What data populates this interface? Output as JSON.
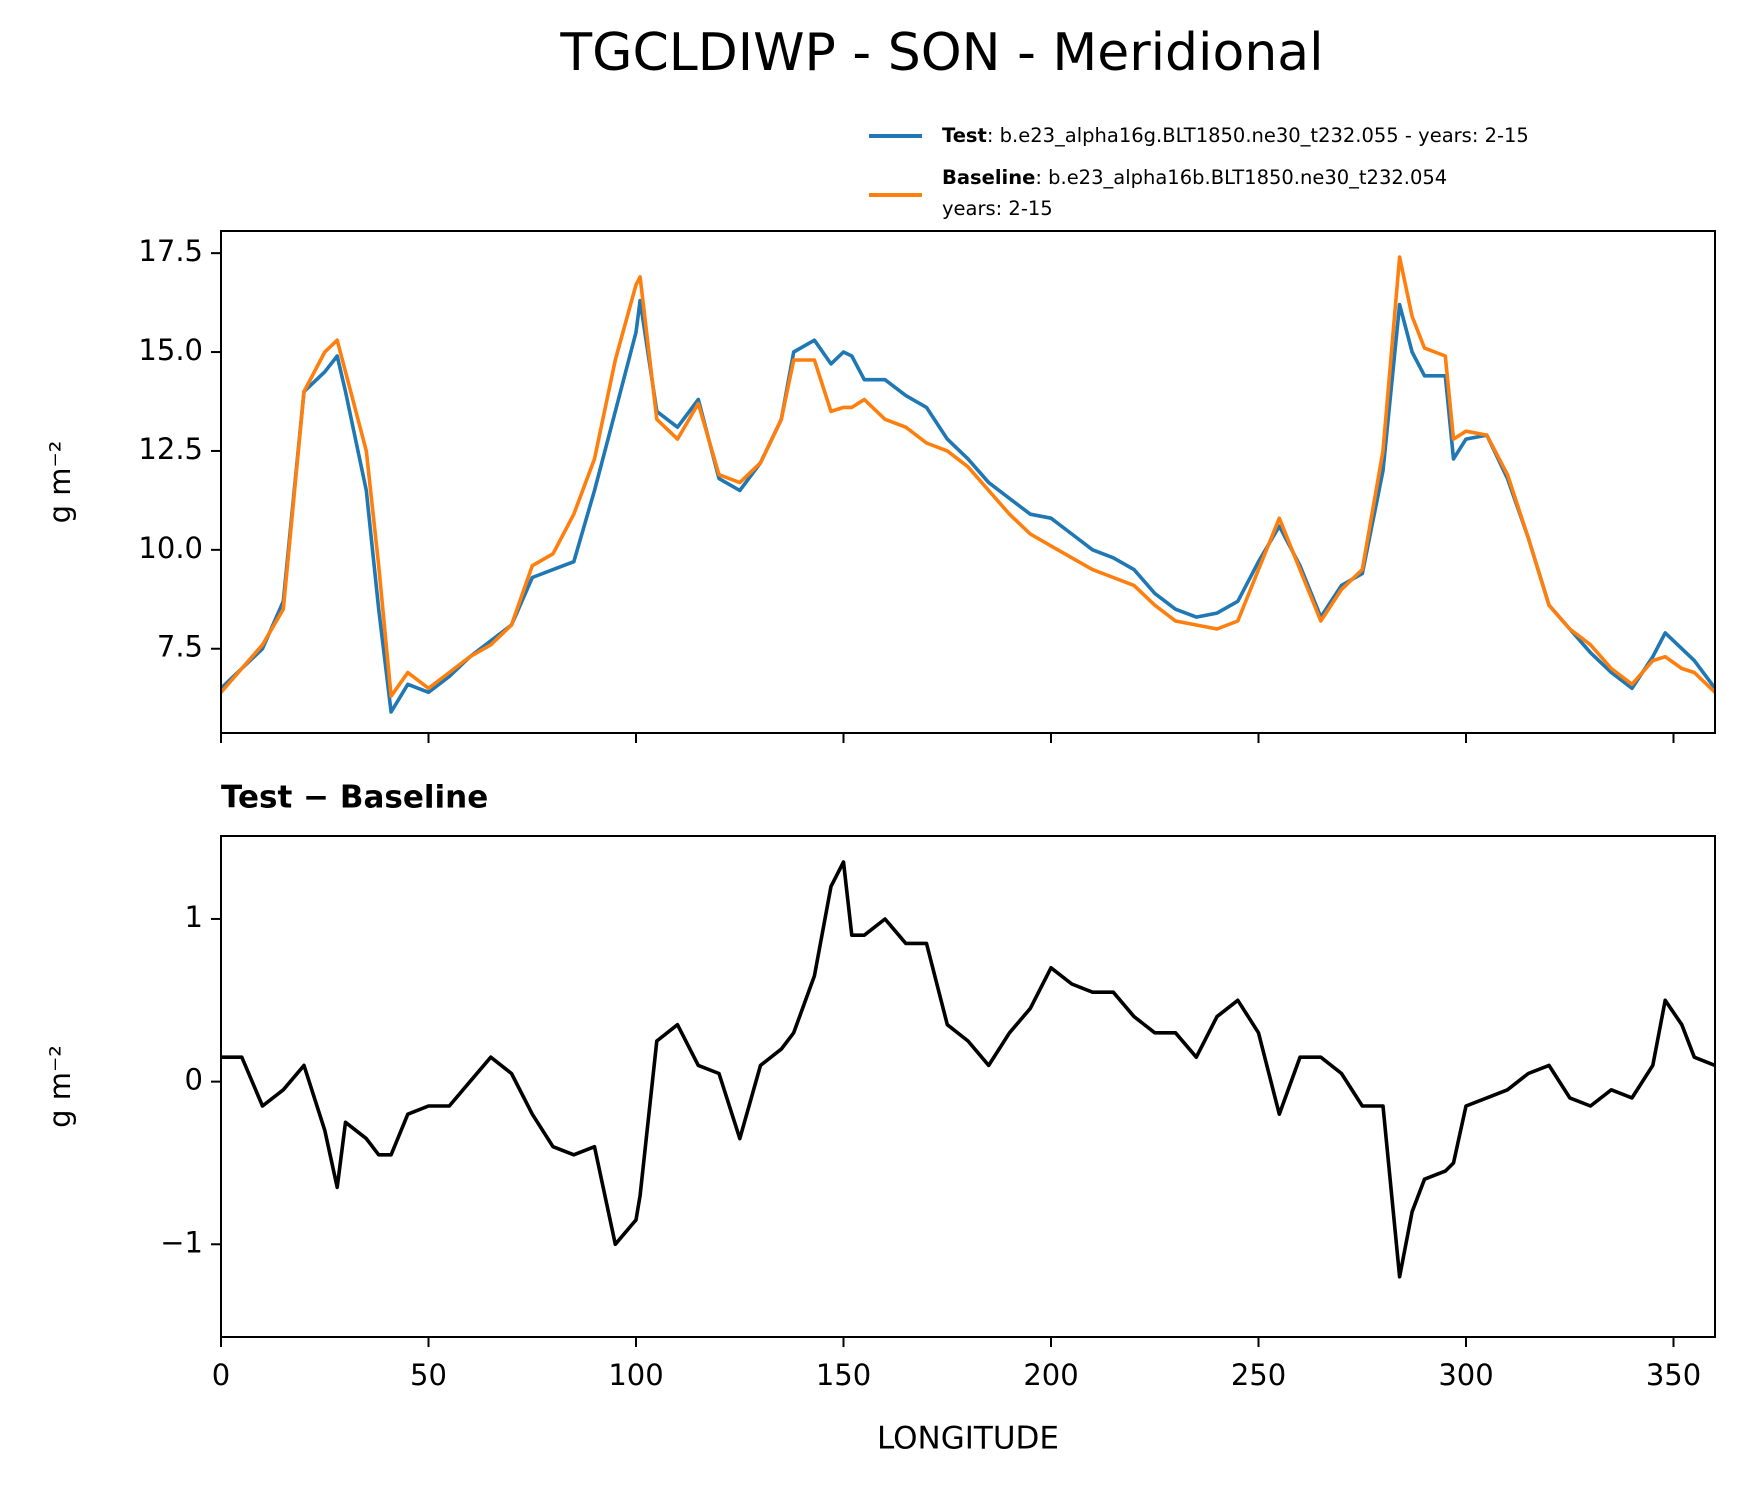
{
  "title": "TGCLDIWP - SON - Meridional",
  "chart_data": [
    {
      "type": "line",
      "ylabel": "g m⁻²",
      "x": [
        0,
        5,
        10,
        15,
        20,
        25,
        28,
        30,
        35,
        38,
        41,
        45,
        50,
        55,
        60,
        65,
        70,
        75,
        80,
        85,
        90,
        95,
        100,
        101,
        105,
        110,
        115,
        120,
        125,
        130,
        135,
        138,
        143,
        147,
        150,
        152,
        155,
        160,
        165,
        170,
        175,
        180,
        185,
        190,
        195,
        200,
        205,
        210,
        215,
        220,
        225,
        230,
        235,
        240,
        245,
        250,
        255,
        260,
        265,
        270,
        275,
        280,
        284,
        287,
        290,
        295,
        297,
        300,
        305,
        310,
        315,
        320,
        325,
        330,
        335,
        340,
        345,
        348,
        352,
        355,
        360
      ],
      "series": [
        {
          "name": "Test",
          "description": [
            ": b.e23_alpha16g.BLT1850.ne30_t232.055 - years: 2-15"
          ],
          "color": "#1f77b4",
          "values": [
            6.5,
            7.0,
            7.5,
            8.7,
            14.0,
            14.5,
            14.9,
            14.0,
            11.5,
            8.5,
            5.9,
            6.6,
            6.4,
            6.8,
            7.3,
            7.7,
            8.1,
            9.3,
            9.5,
            9.7,
            11.5,
            13.5,
            15.5,
            16.3,
            13.5,
            13.1,
            13.8,
            11.8,
            11.5,
            12.2,
            13.3,
            15.0,
            15.3,
            14.7,
            15.0,
            14.9,
            14.3,
            14.3,
            13.9,
            13.6,
            12.8,
            12.3,
            11.7,
            11.3,
            10.9,
            10.8,
            10.4,
            10.0,
            9.8,
            9.5,
            8.9,
            8.5,
            8.3,
            8.4,
            8.7,
            9.7,
            10.6,
            9.6,
            8.3,
            9.1,
            9.4,
            12.0,
            16.2,
            15.0,
            14.4,
            14.4,
            12.3,
            12.8,
            12.9,
            11.8,
            10.3,
            8.6,
            8.0,
            7.4,
            6.9,
            6.5,
            7.3,
            7.9,
            7.5,
            7.2,
            6.5
          ]
        },
        {
          "name": "Baseline",
          "description": [
            ": b.e23_alpha16b.BLT1850.ne30_t232.054",
            "years: 2-15"
          ],
          "color": "#ff7f0e",
          "values": [
            6.4,
            7.0,
            7.6,
            8.5,
            14.0,
            15.0,
            15.3,
            14.5,
            12.5,
            9.6,
            6.3,
            6.9,
            6.5,
            6.9,
            7.3,
            7.6,
            8.1,
            9.6,
            9.9,
            10.9,
            12.3,
            14.8,
            16.7,
            16.9,
            13.3,
            12.8,
            13.7,
            11.9,
            11.7,
            12.2,
            13.3,
            14.8,
            14.8,
            13.5,
            13.6,
            13.6,
            13.8,
            13.3,
            13.1,
            12.7,
            12.5,
            12.1,
            11.5,
            10.9,
            10.4,
            10.1,
            9.8,
            9.5,
            9.3,
            9.1,
            8.6,
            8.2,
            8.1,
            8.0,
            8.2,
            9.5,
            10.8,
            9.5,
            8.2,
            9.0,
            9.5,
            12.5,
            17.4,
            15.9,
            15.1,
            14.9,
            12.8,
            13.0,
            12.9,
            11.9,
            10.3,
            8.6,
            8.0,
            7.6,
            7.0,
            6.6,
            7.2,
            7.3,
            7.0,
            6.9,
            6.4
          ]
        }
      ],
      "xlim": [
        0,
        360
      ],
      "xticks": [
        0,
        50,
        100,
        150,
        200,
        250,
        300,
        350
      ],
      "xticklabels": false,
      "ylim": [
        5.37,
        18.06
      ],
      "yticks": [
        7.5,
        {
          "value": 10,
          "label": "10.0"
        },
        12.5,
        {
          "value": 15,
          "label": "15.0"
        },
        17.5
      ]
    },
    {
      "type": "line",
      "title": "Test − Baseline",
      "xlabel": "LONGITUDE",
      "ylabel": "g m⁻²",
      "color": "#000000",
      "x": [
        0,
        5,
        10,
        15,
        20,
        25,
        28,
        30,
        35,
        38,
        41,
        45,
        50,
        55,
        60,
        65,
        70,
        75,
        80,
        85,
        90,
        95,
        100,
        101,
        105,
        110,
        115,
        120,
        125,
        130,
        135,
        138,
        143,
        147,
        150,
        152,
        155,
        160,
        165,
        170,
        175,
        180,
        185,
        190,
        195,
        200,
        205,
        210,
        215,
        220,
        225,
        230,
        235,
        240,
        245,
        250,
        255,
        260,
        265,
        270,
        275,
        280,
        284,
        287,
        290,
        295,
        297,
        300,
        305,
        310,
        315,
        320,
        325,
        330,
        335,
        340,
        345,
        348,
        352,
        355,
        360
      ],
      "values": [
        0.15,
        0.15,
        -0.15,
        -0.05,
        0.1,
        -0.3,
        -0.65,
        -0.25,
        -0.35,
        -0.45,
        -0.45,
        -0.2,
        -0.15,
        -0.15,
        0.0,
        0.15,
        0.05,
        -0.2,
        -0.4,
        -0.45,
        -0.4,
        -1.0,
        -0.85,
        -0.7,
        0.25,
        0.35,
        0.1,
        0.05,
        -0.35,
        0.1,
        0.2,
        0.3,
        0.65,
        1.2,
        1.35,
        0.9,
        0.9,
        1.0,
        0.85,
        0.85,
        0.35,
        0.25,
        0.1,
        0.3,
        0.45,
        0.7,
        0.6,
        0.55,
        0.55,
        0.4,
        0.3,
        0.3,
        0.15,
        0.4,
        0.5,
        0.3,
        -0.2,
        0.15,
        0.15,
        0.05,
        -0.15,
        -0.15,
        -1.2,
        -0.8,
        -0.6,
        -0.55,
        -0.5,
        -0.15,
        -0.1,
        -0.05,
        0.05,
        0.1,
        -0.1,
        -0.15,
        -0.05,
        -0.1,
        0.1,
        0.5,
        0.35,
        0.15,
        0.1
      ],
      "xlim": [
        0,
        360
      ],
      "xticks": [
        0,
        50,
        100,
        150,
        200,
        250,
        300,
        350
      ],
      "xticklabels": true,
      "ylim": [
        -1.57,
        1.51
      ],
      "yticks": [
        {
          "value": -1,
          "label": "−1"
        },
        0,
        1
      ]
    }
  ]
}
